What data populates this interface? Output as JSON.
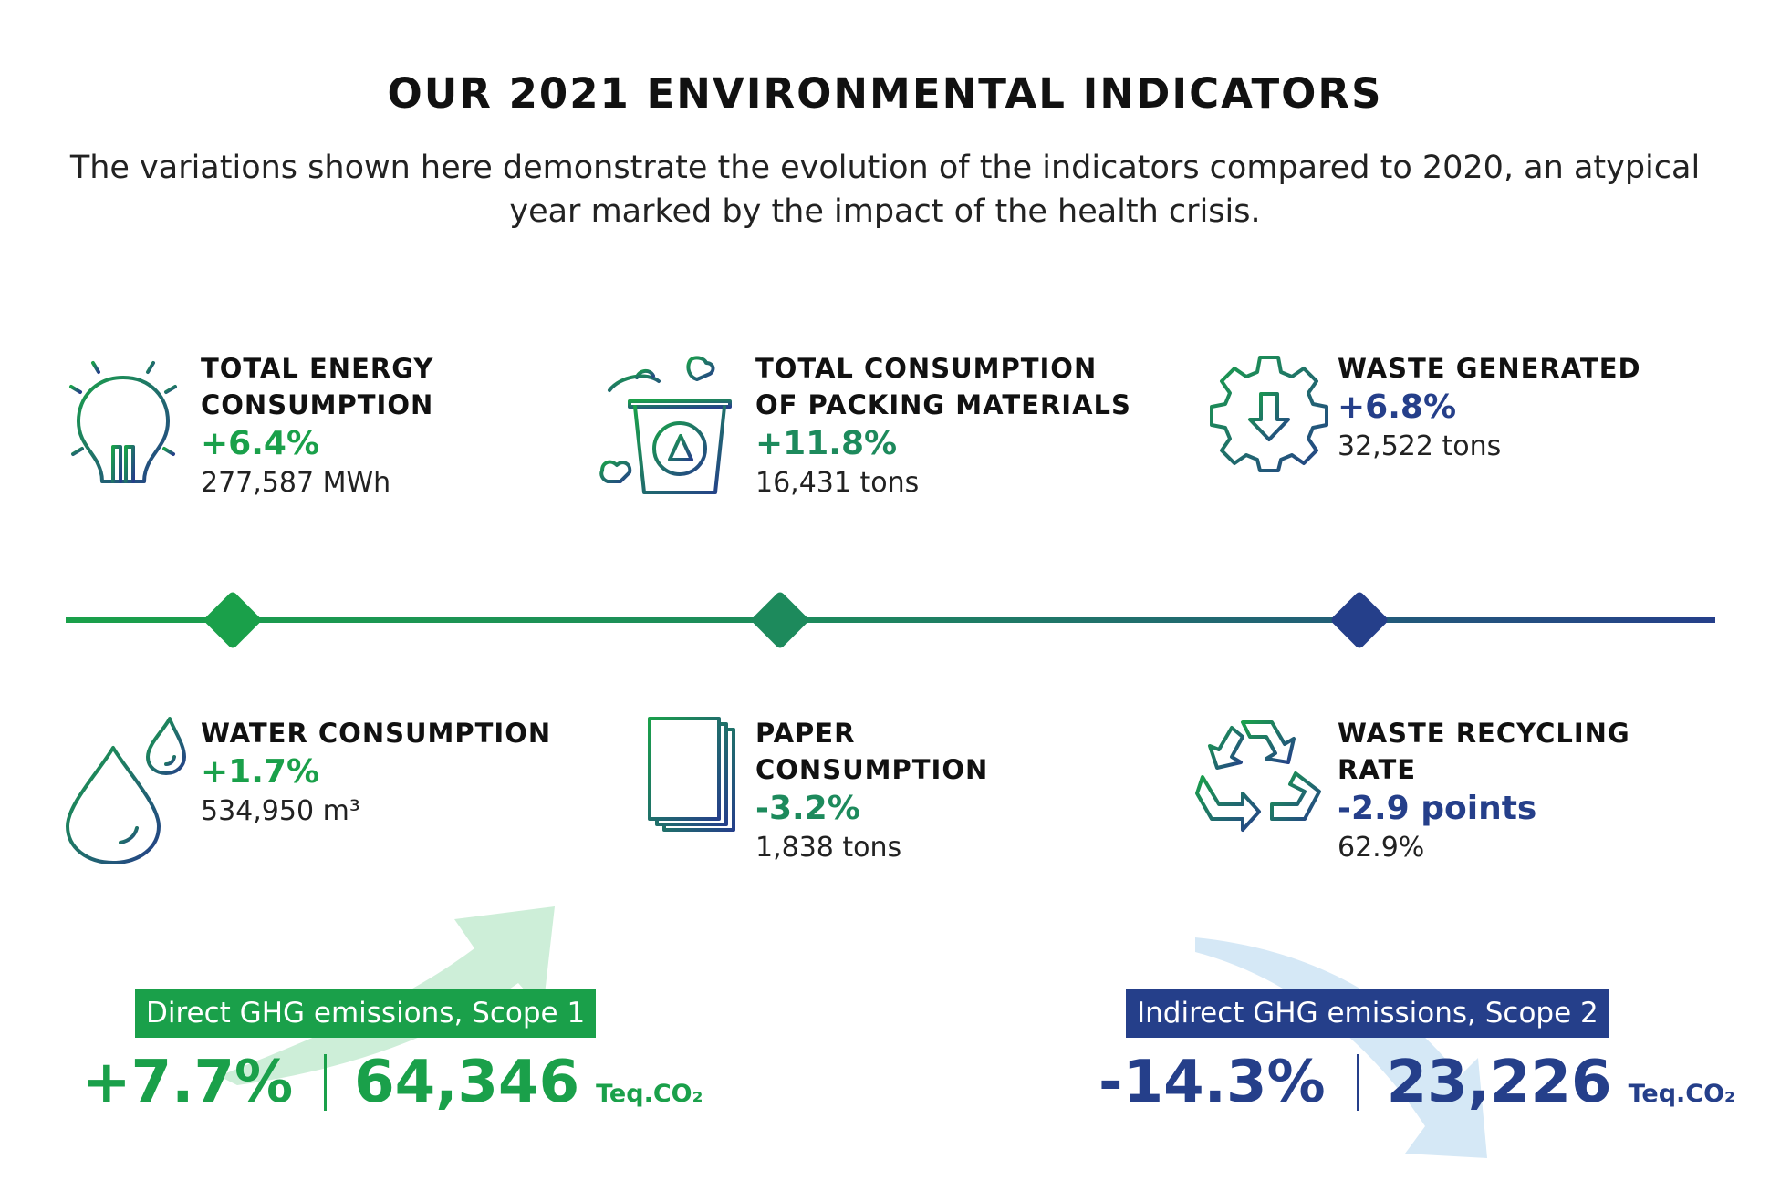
{
  "title": "OUR 2021 ENVIRONMENTAL INDICATORS",
  "subtitle": "The variations shown here demonstrate the evolution of the indicators compared to 2020, an atypical year marked by the impact of the health crisis.",
  "colors": {
    "green": "#1aa04a",
    "teal": "#1d8a5c",
    "navy": "#253f8a"
  },
  "indicators": [
    {
      "label": "TOTAL ENERGY\nCONSUMPTION",
      "change": "+6.4%",
      "value": "277,587 MWh",
      "icon": "lightbulb-icon"
    },
    {
      "label": "TOTAL CONSUMPTION\nOF PACKING MATERIALS",
      "change": "+11.8%",
      "value": "16,431 tons",
      "icon": "recycle-bin-icon"
    },
    {
      "label": "WASTE GENERATED",
      "change": "+6.8%",
      "value": "32,522 tons",
      "icon": "gear-down-arrow-icon"
    },
    {
      "label": "WATER CONSUMPTION",
      "change": "+1.7%",
      "value": "534,950 m³",
      "icon": "water-drop-icon"
    },
    {
      "label": "PAPER\nCONSUMPTION",
      "change": "-3.2%",
      "value": "1,838 tons",
      "icon": "paper-stack-icon"
    },
    {
      "label": "WASTE RECYCLING\nRATE",
      "change": "-2.9 points",
      "value": "62.9%",
      "icon": "recycle-icon"
    }
  ],
  "ghg": [
    {
      "label": "Direct GHG emissions, Scope 1",
      "change": "+7.7%",
      "value": "64,346",
      "unit": "Teq.CO₂"
    },
    {
      "label": "Indirect GHG emissions, Scope 2",
      "change": "-14.3%",
      "value": "23,226",
      "unit": "Teq.CO₂"
    }
  ]
}
